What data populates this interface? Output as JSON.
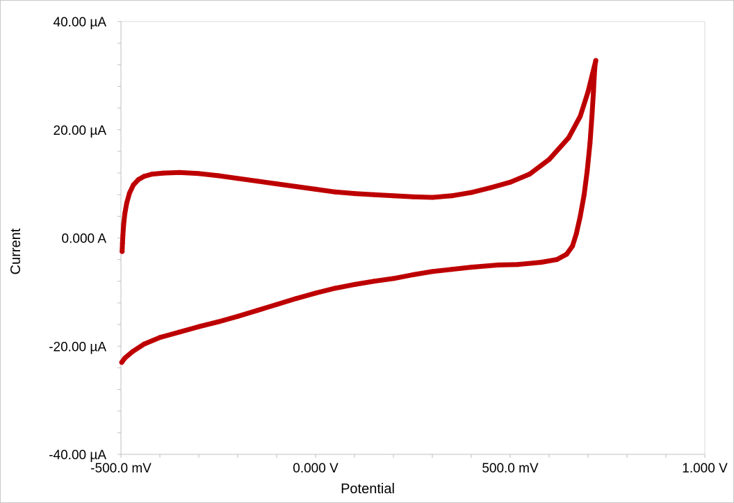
{
  "chart_data": {
    "type": "line",
    "title": "",
    "xlabel": "Potential",
    "ylabel": "Current",
    "xlim": [
      -0.5,
      1.0
    ],
    "ylim": [
      -40,
      40
    ],
    "x_unit": "V",
    "y_unit": "µA",
    "x_ticks": [
      {
        "value": -0.5,
        "label": "-500.0 mV"
      },
      {
        "value": 0.0,
        "label": "0.000 V"
      },
      {
        "value": 0.5,
        "label": "500.0 mV"
      },
      {
        "value": 1.0,
        "label": "1.000 V"
      }
    ],
    "y_ticks": [
      {
        "value": 40,
        "label": "40.00 µA"
      },
      {
        "value": 20,
        "label": "20.00 µA"
      },
      {
        "value": 0,
        "label": "0.000 A"
      },
      {
        "value": -20,
        "label": "-20.00 µA"
      },
      {
        "value": -40,
        "label": "-40.00 µA"
      }
    ],
    "x_minor_step": 0.1,
    "y_minor_step": 4,
    "grid": "top-right border only",
    "legend": "none",
    "series_color": "#c00000",
    "series": [
      {
        "name": "",
        "points": [
          [
            -0.497,
            -2.5
          ],
          [
            -0.496,
            -1.0
          ],
          [
            -0.495,
            0.5
          ],
          [
            -0.493,
            2.5
          ],
          [
            -0.49,
            4.5
          ],
          [
            -0.485,
            6.5
          ],
          [
            -0.478,
            8.3
          ],
          [
            -0.468,
            9.8
          ],
          [
            -0.455,
            10.8
          ],
          [
            -0.44,
            11.4
          ],
          [
            -0.42,
            11.8
          ],
          [
            -0.39,
            12.0
          ],
          [
            -0.35,
            12.1
          ],
          [
            -0.3,
            11.9
          ],
          [
            -0.25,
            11.5
          ],
          [
            -0.2,
            11.0
          ],
          [
            -0.15,
            10.5
          ],
          [
            -0.1,
            10.0
          ],
          [
            -0.05,
            9.5
          ],
          [
            0.0,
            9.0
          ],
          [
            0.05,
            8.5
          ],
          [
            0.1,
            8.2
          ],
          [
            0.15,
            8.0
          ],
          [
            0.2,
            7.8
          ],
          [
            0.25,
            7.6
          ],
          [
            0.3,
            7.5
          ],
          [
            0.35,
            7.8
          ],
          [
            0.4,
            8.4
          ],
          [
            0.45,
            9.3
          ],
          [
            0.5,
            10.3
          ],
          [
            0.55,
            11.8
          ],
          [
            0.6,
            14.5
          ],
          [
            0.65,
            18.5
          ],
          [
            0.68,
            22.5
          ],
          [
            0.7,
            27.0
          ],
          [
            0.712,
            30.5
          ],
          [
            0.72,
            32.8
          ],
          [
            0.718,
            32.0
          ],
          [
            0.716,
            30.0
          ],
          [
            0.714,
            27.0
          ],
          [
            0.71,
            22.5
          ],
          [
            0.705,
            17.5
          ],
          [
            0.698,
            12.5
          ],
          [
            0.69,
            8.0
          ],
          [
            0.68,
            4.0
          ],
          [
            0.67,
            0.8
          ],
          [
            0.66,
            -1.5
          ],
          [
            0.645,
            -3.0
          ],
          [
            0.62,
            -4.0
          ],
          [
            0.58,
            -4.5
          ],
          [
            0.52,
            -4.9
          ],
          [
            0.47,
            -5.0
          ],
          [
            0.4,
            -5.4
          ],
          [
            0.35,
            -5.8
          ],
          [
            0.3,
            -6.2
          ],
          [
            0.25,
            -6.8
          ],
          [
            0.2,
            -7.5
          ],
          [
            0.15,
            -8.0
          ],
          [
            0.1,
            -8.6
          ],
          [
            0.05,
            -9.3
          ],
          [
            0.0,
            -10.2
          ],
          [
            -0.05,
            -11.2
          ],
          [
            -0.1,
            -12.3
          ],
          [
            -0.15,
            -13.4
          ],
          [
            -0.2,
            -14.5
          ],
          [
            -0.25,
            -15.5
          ],
          [
            -0.3,
            -16.4
          ],
          [
            -0.35,
            -17.4
          ],
          [
            -0.4,
            -18.4
          ],
          [
            -0.44,
            -19.6
          ],
          [
            -0.47,
            -21.0
          ],
          [
            -0.49,
            -22.2
          ],
          [
            -0.498,
            -23.0
          ]
        ]
      }
    ]
  }
}
